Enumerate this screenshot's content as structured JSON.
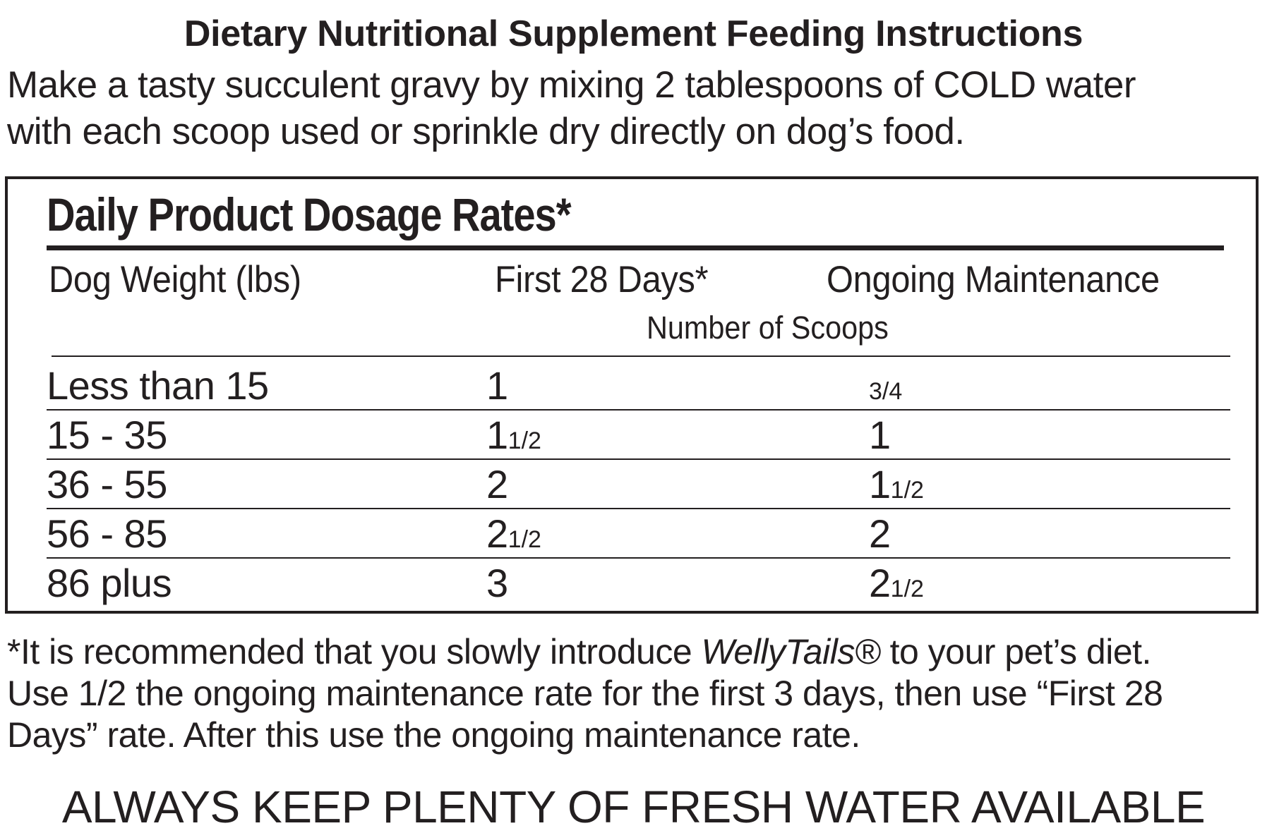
{
  "header": {
    "title": "Dietary Nutritional Supplement Feeding Instructions",
    "intro_line1": "Make a tasty succulent gravy by mixing 2 tablespoons of COLD water",
    "intro_line2": "with each scoop used or sprinkle dry directly on dog’s food."
  },
  "dosage_table": {
    "title": "Daily Product Dosage Rates*",
    "columns": {
      "weight": "Dog Weight (lbs)",
      "first": "First 28 Days*",
      "ongoing": "Ongoing Maintenance"
    },
    "subheader": "Number of Scoops",
    "rows": [
      {
        "weight": "Less than 15",
        "first_whole": "1",
        "first_frac": "",
        "ongoing_whole": "",
        "ongoing_frac": "3/4"
      },
      {
        "weight": "15 - 35",
        "first_whole": "1",
        "first_frac": "1/2",
        "ongoing_whole": "1",
        "ongoing_frac": ""
      },
      {
        "weight": "36 - 55",
        "first_whole": "2",
        "first_frac": "",
        "ongoing_whole": "1",
        "ongoing_frac": "1/2"
      },
      {
        "weight": "56 - 85",
        "first_whole": "2",
        "first_frac": "1/2",
        "ongoing_whole": "2",
        "ongoing_frac": ""
      },
      {
        "weight": "86 plus",
        "first_whole": "3",
        "first_frac": "",
        "ongoing_whole": "2",
        "ongoing_frac": "1/2"
      }
    ]
  },
  "footnote": {
    "line1_prefix": "*It is recommended that you slowly introduce ",
    "brand": "WellyTails®",
    "line1_suffix": " to your pet’s diet.",
    "line2": "Use 1/2 the ongoing maintenance rate for the first 3 days, then use “First  28",
    "line3": "Days” rate. After this use the ongoing maintenance rate."
  },
  "warning": "ALWAYS KEEP PLENTY OF FRESH WATER AVAILABLE"
}
